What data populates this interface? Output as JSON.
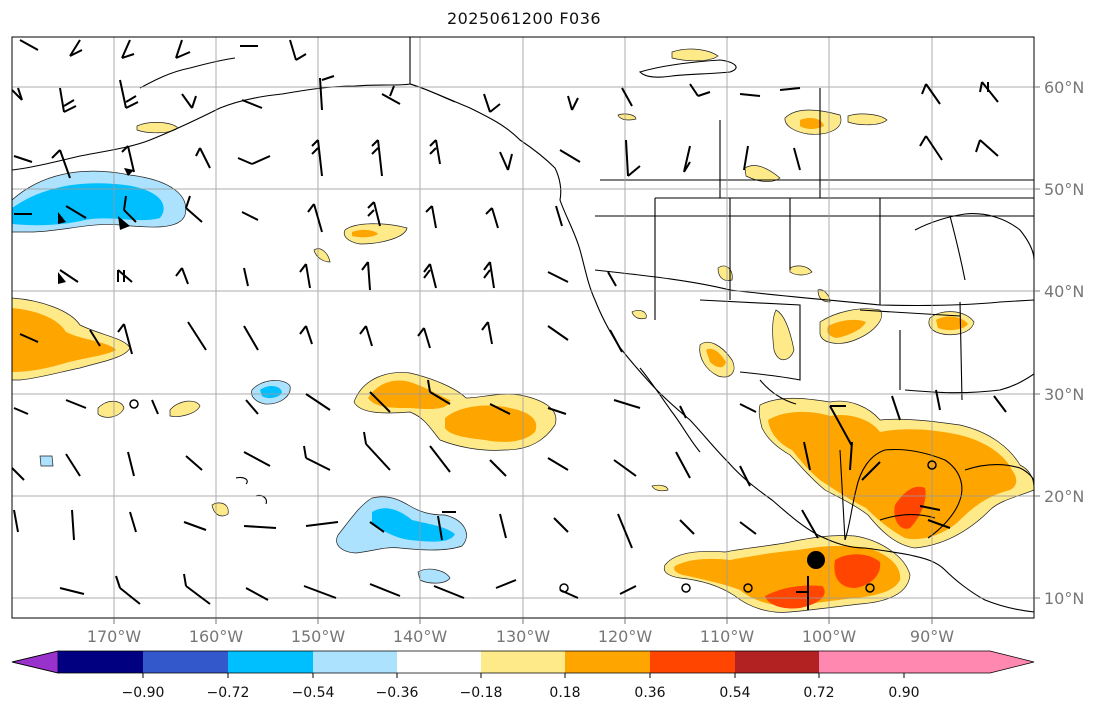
{
  "title": "2025061200 F036",
  "longitude_labels": [
    "170°W",
    "160°W",
    "150°W",
    "140°W",
    "130°W",
    "120°W",
    "110°W",
    "100°W",
    "90°W"
  ],
  "latitude_labels": [
    "60°N",
    "50°N",
    "40°N",
    "30°N",
    "20°N",
    "10°N"
  ],
  "colorbar": {
    "colors": [
      "#9932cc",
      "#000080",
      "#3358cc",
      "#00bfff",
      "#ade2ff",
      "#ffffff",
      "#ffea8a",
      "#ffa500",
      "#ff4500",
      "#b22222",
      "#ff88b0"
    ],
    "tick_labels": [
      "−0.90",
      "−0.72",
      "−0.54",
      "−0.36",
      "−0.18",
      "0.18",
      "0.36",
      "0.54",
      "0.72",
      "0.90"
    ]
  }
}
